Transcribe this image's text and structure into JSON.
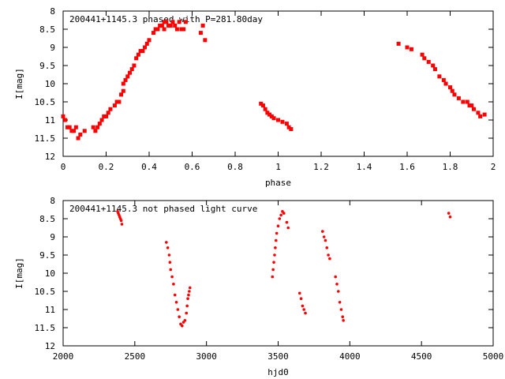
{
  "chart_data": [
    {
      "type": "scatter",
      "title": "200441+1145.3 phased with P=281.80day",
      "xlabel": "phase",
      "ylabel": "I[mag]",
      "xlim": [
        0,
        2
      ],
      "ylim": [
        12,
        8
      ],
      "y_inverted": true,
      "xticks": [
        0,
        0.2,
        0.4,
        0.6,
        0.8,
        1,
        1.2,
        1.4,
        1.6,
        1.8,
        2
      ],
      "xtick_labels": [
        "0",
        "0.2",
        "0.4",
        "0.6",
        "0.8",
        "1",
        "1.2",
        "1.4",
        "1.6",
        "1.8",
        "2"
      ],
      "yticks": [
        8,
        8.5,
        9,
        9.5,
        10,
        10.5,
        11,
        11.5,
        12
      ],
      "ytick_labels": [
        "8",
        "8.5",
        "9",
        "9.5",
        "10",
        "10.5",
        "11",
        "11.5",
        "12"
      ],
      "grid": false,
      "marker_color": "#ff0000",
      "series": [
        {
          "x": [
            0.0,
            0.01,
            0.02,
            0.03,
            0.04,
            0.05,
            0.06,
            0.07,
            0.08,
            0.1,
            0.14,
            0.15,
            0.16,
            0.17,
            0.18,
            0.19,
            0.2,
            0.21,
            0.22,
            0.24,
            0.25,
            0.26,
            0.27,
            0.28,
            0.28,
            0.29,
            0.3,
            0.31,
            0.32,
            0.33,
            0.34,
            0.35,
            0.36,
            0.37,
            0.38,
            0.39,
            0.4,
            0.42,
            0.43,
            0.44,
            0.45,
            0.46,
            0.47,
            0.47,
            0.48,
            0.49,
            0.5,
            0.51,
            0.52,
            0.53,
            0.54,
            0.55,
            0.56,
            0.57,
            0.64,
            0.65,
            0.66,
            0.92,
            0.93,
            0.94,
            0.95,
            0.96,
            0.97,
            0.98,
            1.0,
            1.02,
            1.04,
            1.05,
            1.06,
            1.56,
            1.6,
            1.62,
            1.67,
            1.68,
            1.7,
            1.72,
            1.73,
            1.75,
            1.77,
            1.78,
            1.8,
            1.81,
            1.82,
            1.84,
            1.86,
            1.88,
            1.89,
            1.9,
            1.91,
            1.93,
            1.94,
            1.96
          ],
          "y": [
            10.9,
            11.0,
            11.2,
            11.2,
            11.3,
            11.3,
            11.2,
            11.5,
            11.4,
            11.3,
            11.2,
            11.3,
            11.2,
            11.1,
            11.0,
            10.9,
            10.9,
            10.8,
            10.7,
            10.6,
            10.5,
            10.5,
            10.3,
            10.2,
            10.0,
            9.9,
            9.8,
            9.7,
            9.6,
            9.5,
            9.3,
            9.2,
            9.1,
            9.1,
            9.0,
            8.9,
            8.8,
            8.6,
            8.5,
            8.5,
            8.4,
            8.4,
            8.3,
            8.5,
            8.3,
            8.4,
            8.4,
            8.3,
            8.4,
            8.5,
            8.3,
            8.5,
            8.5,
            8.3,
            8.6,
            8.4,
            8.8,
            10.55,
            10.6,
            10.7,
            10.8,
            10.85,
            10.9,
            10.95,
            11.0,
            11.05,
            11.1,
            11.2,
            11.25,
            8.9,
            9.0,
            9.05,
            9.2,
            9.3,
            9.4,
            9.5,
            9.6,
            9.8,
            9.9,
            10.0,
            10.1,
            10.2,
            10.3,
            10.4,
            10.5,
            10.5,
            10.6,
            10.6,
            10.7,
            10.8,
            10.9,
            10.85
          ]
        }
      ]
    },
    {
      "type": "scatter",
      "title": "200441+1145.3 not phased light curve",
      "xlabel": "hjd0",
      "ylabel": "I[mag]",
      "xlim": [
        2000,
        5000
      ],
      "ylim": [
        12,
        8
      ],
      "y_inverted": true,
      "xticks": [
        2000,
        2500,
        3000,
        3500,
        4000,
        4500,
        5000
      ],
      "xtick_labels": [
        "2000",
        "2500",
        "3000",
        "3500",
        "4000",
        "4500",
        "5000"
      ],
      "yticks": [
        8,
        8.5,
        9,
        9.5,
        10,
        10.5,
        11,
        11.5,
        12
      ],
      "ytick_labels": [
        "8",
        "8.5",
        "9",
        "9.5",
        "10",
        "10.5",
        "11",
        "11.5",
        "12"
      ],
      "grid": false,
      "marker_color": "#ff0000",
      "series": [
        {
          "x": [
            2380,
            2385,
            2390,
            2395,
            2400,
            2405,
            2410,
            2720,
            2730,
            2740,
            2745,
            2750,
            2760,
            2770,
            2780,
            2790,
            2800,
            2810,
            2820,
            2830,
            2840,
            2850,
            2860,
            2865,
            2870,
            2875,
            2880,
            2885,
            3460,
            3465,
            3470,
            3475,
            3480,
            3485,
            3490,
            3500,
            3510,
            3520,
            3530,
            3540,
            3560,
            3570,
            3650,
            3660,
            3670,
            3680,
            3690,
            3810,
            3820,
            3830,
            3840,
            3850,
            3860,
            3900,
            3910,
            3920,
            3930,
            3940,
            3950,
            3955,
            4690,
            4700
          ],
          "y": [
            8.3,
            8.35,
            8.4,
            8.45,
            8.5,
            8.55,
            8.65,
            9.15,
            9.3,
            9.5,
            9.7,
            9.9,
            10.1,
            10.3,
            10.6,
            10.8,
            11.0,
            11.2,
            11.4,
            11.45,
            11.35,
            11.3,
            11.1,
            10.9,
            10.7,
            10.6,
            10.5,
            10.4,
            10.1,
            9.9,
            9.7,
            9.5,
            9.3,
            9.1,
            8.9,
            8.7,
            8.5,
            8.4,
            8.3,
            8.35,
            8.6,
            8.75,
            10.55,
            10.7,
            10.9,
            11.0,
            11.1,
            8.85,
            9.0,
            9.1,
            9.3,
            9.5,
            9.6,
            10.1,
            10.3,
            10.5,
            10.8,
            11.0,
            11.2,
            11.3,
            8.35,
            8.45
          ]
        }
      ]
    }
  ]
}
